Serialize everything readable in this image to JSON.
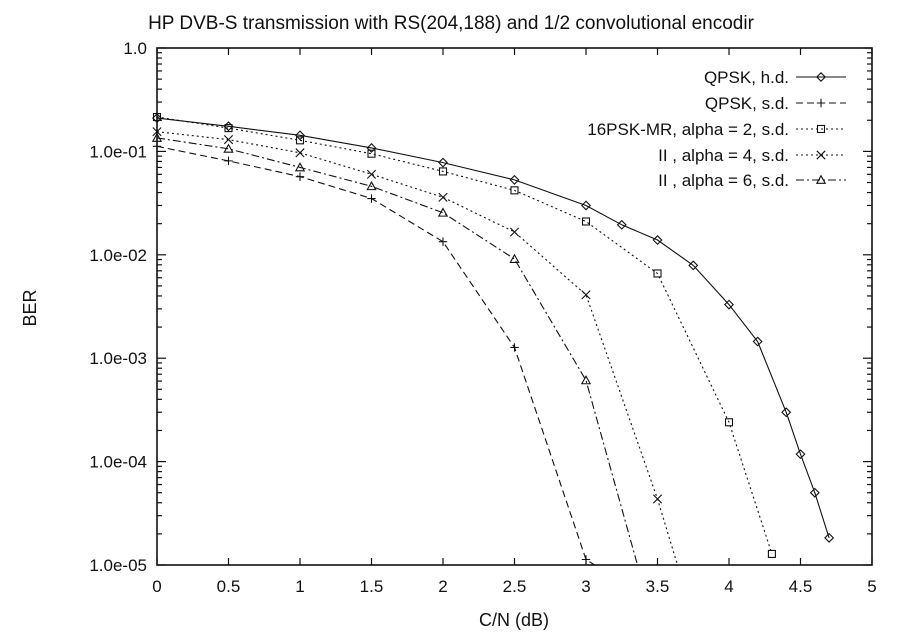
{
  "chart_data": {
    "type": "line",
    "title": "HP DVB-S transmission with RS(204,188) and 1/2 convolutional encodir",
    "xlabel": "C/N  (dB)",
    "ylabel": "BER",
    "xlim": [
      0,
      5
    ],
    "ylim": [
      1e-05,
      1
    ],
    "yscale": "log",
    "grid": false,
    "legend_position": "top-right",
    "x_ticks": [
      "0",
      "0.5",
      "1",
      "1.5",
      "2",
      "2.5",
      "3",
      "3.5",
      "4",
      "4.5",
      "5"
    ],
    "y_ticks": [
      "1.0",
      "1.0e-01",
      "1.0e-02",
      "1.0e-03",
      "1.0e-04",
      "1.0e-05"
    ],
    "series": [
      {
        "name": "QPSK, h.d.",
        "marker": "diamond",
        "dash": "solid",
        "x": [
          0,
          0.5,
          1,
          1.5,
          2,
          2.5,
          3,
          3.25,
          3.5,
          3.75,
          4,
          4.2,
          4.4,
          4.5,
          4.6,
          4.7
        ],
        "y": [
          0.21,
          0.175,
          0.143,
          0.108,
          0.078,
          0.053,
          0.03,
          0.0195,
          0.0139,
          0.0079,
          0.0033,
          0.00145,
          0.0003,
          0.000118,
          5e-05,
          1.83e-05
        ]
      },
      {
        "name": "QPSK, s.d.",
        "marker": "plus",
        "dash": "dashed",
        "x": [
          0,
          0.5,
          1,
          1.5,
          2,
          2.5,
          3,
          3.06
        ],
        "y": [
          0.112,
          0.081,
          0.057,
          0.035,
          0.0134,
          0.00127,
          1.13e-05,
          1e-05
        ]
      },
      {
        "name": "16PSK-MR, alpha = 2, s.d.",
        "marker": "square",
        "dash": "dotted",
        "x": [
          0,
          0.5,
          1,
          1.5,
          2,
          2.5,
          3,
          3.5,
          4,
          4.3
        ],
        "y": [
          0.215,
          0.168,
          0.128,
          0.095,
          0.064,
          0.042,
          0.021,
          0.0066,
          0.00024,
          1.28e-05
        ]
      },
      {
        "name": "II    , alpha = 4, s.d.",
        "marker": "cross",
        "dash": "dotted",
        "x": [
          0,
          0.5,
          1,
          1.5,
          2,
          2.5,
          3,
          3.5,
          3.64
        ],
        "y": [
          0.155,
          0.13,
          0.097,
          0.06,
          0.036,
          0.0166,
          0.0041,
          4.35e-05,
          1e-05
        ]
      },
      {
        "name": "II    , alpha = 6, s.d.",
        "marker": "triangle",
        "dash": "dashdot",
        "x": [
          0,
          0.5,
          1,
          1.5,
          2,
          2.5,
          3,
          3.36
        ],
        "y": [
          0.135,
          0.106,
          0.07,
          0.046,
          0.0255,
          0.0091,
          0.00061,
          1e-05
        ]
      }
    ]
  }
}
